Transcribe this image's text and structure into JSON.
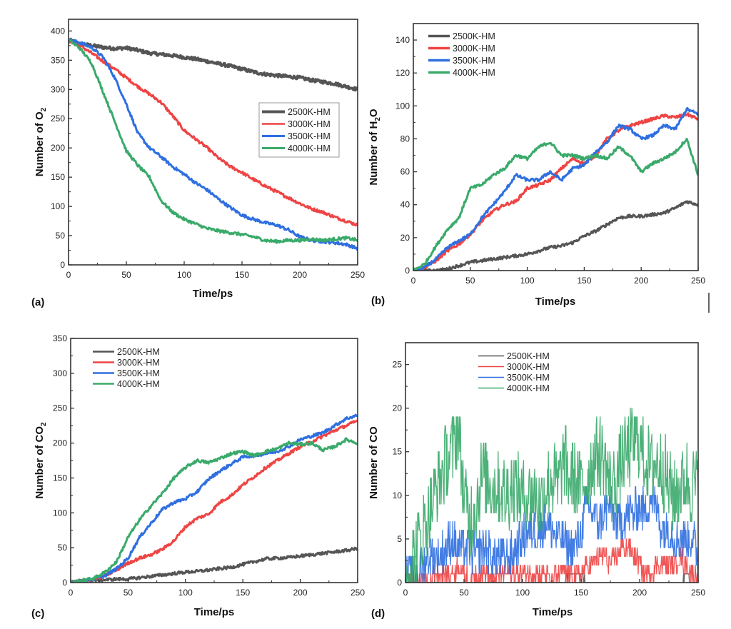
{
  "figure": {
    "series_names": [
      "2500K-HM",
      "3000K-HM",
      "3500K-HM",
      "4000K-HM"
    ],
    "series_colors": [
      "#555555",
      "#ee4444",
      "#2f6fe0",
      "#3aaa6a"
    ]
  },
  "chart_data": [
    {
      "id": "a",
      "type": "line",
      "panel_label": "(a)",
      "title": "",
      "xlabel": "Time/ps",
      "ylabel": "Number of O",
      "ylabel_sub": "2",
      "xlim": [
        0,
        250
      ],
      "ylim": [
        0,
        420
      ],
      "xticks": [
        0,
        50,
        100,
        150,
        200,
        250
      ],
      "yticks": [
        0,
        50,
        100,
        150,
        200,
        250,
        300,
        350,
        400
      ],
      "grid": false,
      "legend": {
        "placement": "right-middle",
        "boxed": true
      },
      "x": [
        0,
        10,
        20,
        30,
        40,
        50,
        60,
        70,
        80,
        90,
        100,
        110,
        120,
        130,
        140,
        150,
        160,
        170,
        180,
        190,
        200,
        210,
        220,
        230,
        240,
        250
      ],
      "series": [
        {
          "name": "2500K-HM",
          "values": [
            385,
            378,
            375,
            372,
            370,
            371,
            367,
            362,
            360,
            358,
            355,
            352,
            348,
            344,
            340,
            335,
            330,
            326,
            324,
            322,
            320,
            316,
            313,
            310,
            305,
            300
          ]
        },
        {
          "name": "3000K-HM",
          "values": [
            383,
            375,
            362,
            348,
            335,
            320,
            305,
            292,
            278,
            255,
            230,
            215,
            200,
            182,
            168,
            158,
            146,
            135,
            125,
            115,
            105,
            96,
            90,
            82,
            75,
            68
          ]
        },
        {
          "name": "3500K-HM",
          "values": [
            385,
            380,
            372,
            355,
            320,
            275,
            225,
            200,
            185,
            168,
            155,
            140,
            128,
            112,
            98,
            85,
            78,
            72,
            68,
            60,
            48,
            42,
            40,
            38,
            35,
            28
          ]
        },
        {
          "name": "4000K-HM",
          "values": [
            385,
            370,
            345,
            295,
            245,
            195,
            170,
            150,
            110,
            90,
            78,
            70,
            62,
            58,
            55,
            52,
            48,
            42,
            40,
            42,
            42,
            44,
            42,
            44,
            46,
            42
          ]
        }
      ]
    },
    {
      "id": "b",
      "type": "line",
      "panel_label": "(b)",
      "title": "",
      "xlabel": "Time/ps",
      "ylabel": "Number of H",
      "ylabel_sub": "2",
      "ylabel_after": "O",
      "xlim": [
        0,
        250
      ],
      "ylim": [
        0,
        150
      ],
      "xticks": [
        0,
        50,
        100,
        150,
        200,
        250
      ],
      "yticks": [
        0,
        20,
        40,
        60,
        80,
        100,
        120,
        140
      ],
      "grid": false,
      "legend": {
        "placement": "top-left",
        "boxed": false
      },
      "x": [
        0,
        10,
        20,
        30,
        40,
        50,
        60,
        70,
        80,
        90,
        100,
        110,
        120,
        130,
        140,
        150,
        160,
        170,
        180,
        190,
        200,
        210,
        220,
        230,
        240,
        250
      ],
      "series": [
        {
          "name": "2500K-HM",
          "values": [
            0,
            0,
            0,
            1,
            3,
            5,
            6,
            7,
            8,
            9,
            10,
            12,
            14,
            15,
            17,
            21,
            24,
            28,
            32,
            33,
            33,
            34,
            35,
            38,
            42,
            40
          ]
        },
        {
          "name": "3000K-HM",
          "values": [
            0,
            2,
            6,
            12,
            16,
            22,
            30,
            36,
            40,
            42,
            50,
            52,
            55,
            62,
            68,
            65,
            70,
            80,
            85,
            88,
            90,
            92,
            94,
            93,
            95,
            92
          ]
        },
        {
          "name": "3500K-HM",
          "values": [
            0,
            2,
            7,
            14,
            18,
            22,
            32,
            40,
            48,
            58,
            55,
            55,
            60,
            55,
            62,
            64,
            72,
            78,
            88,
            86,
            80,
            82,
            88,
            86,
            98,
            95
          ]
        },
        {
          "name": "4000K-HM",
          "values": [
            0,
            4,
            15,
            25,
            32,
            50,
            52,
            58,
            62,
            70,
            68,
            75,
            78,
            70,
            70,
            68,
            70,
            68,
            75,
            70,
            60,
            65,
            68,
            72,
            80,
            58
          ]
        }
      ]
    },
    {
      "id": "c",
      "type": "line",
      "panel_label": "(c)",
      "title": "",
      "xlabel": "Time/ps",
      "ylabel": "Number of CO",
      "ylabel_sub": "2",
      "xlim": [
        0,
        250
      ],
      "ylim": [
        0,
        350
      ],
      "xticks": [
        0,
        50,
        100,
        150,
        200,
        250
      ],
      "yticks": [
        0,
        50,
        100,
        150,
        200,
        250,
        300,
        350
      ],
      "grid": false,
      "legend": {
        "placement": "top-left",
        "boxed": false
      },
      "x": [
        0,
        10,
        20,
        30,
        40,
        50,
        60,
        70,
        80,
        90,
        100,
        110,
        120,
        130,
        140,
        150,
        160,
        170,
        180,
        190,
        200,
        210,
        220,
        230,
        240,
        250
      ],
      "series": [
        {
          "name": "2500K-HM",
          "values": [
            0,
            2,
            3,
            4,
            5,
            5,
            7,
            9,
            11,
            13,
            15,
            16,
            18,
            20,
            22,
            26,
            30,
            34,
            35,
            36,
            38,
            40,
            42,
            44,
            46,
            49
          ]
        },
        {
          "name": "3000K-HM",
          "values": [
            0,
            3,
            5,
            10,
            18,
            28,
            35,
            40,
            48,
            60,
            80,
            92,
            98,
            115,
            125,
            140,
            152,
            165,
            175,
            185,
            195,
            202,
            210,
            218,
            225,
            232
          ]
        },
        {
          "name": "3500K-HM",
          "values": [
            0,
            3,
            5,
            10,
            20,
            35,
            65,
            85,
            105,
            115,
            120,
            130,
            148,
            160,
            170,
            180,
            182,
            185,
            188,
            195,
            205,
            210,
            215,
            225,
            235,
            240
          ]
        },
        {
          "name": "4000K-HM",
          "values": [
            0,
            3,
            6,
            15,
            30,
            65,
            90,
            110,
            128,
            150,
            165,
            175,
            172,
            178,
            185,
            188,
            182,
            188,
            192,
            200,
            198,
            200,
            190,
            195,
            205,
            200
          ]
        }
      ]
    },
    {
      "id": "d",
      "type": "line",
      "panel_label": "(d)",
      "title": "",
      "xlabel": "Time/ps",
      "ylabel": "Number of CO",
      "ylabel_sub": "",
      "xlim": [
        0,
        250
      ],
      "ylim": [
        0,
        27.5
      ],
      "xticks": [
        0,
        50,
        100,
        150,
        200,
        250
      ],
      "yticks": [
        0,
        5,
        10,
        15,
        20,
        25
      ],
      "grid": false,
      "legend": {
        "placement": "top-center",
        "boxed": false
      },
      "x": [
        0,
        5,
        10,
        15,
        20,
        25,
        30,
        35,
        40,
        45,
        50,
        55,
        60,
        65,
        70,
        75,
        80,
        85,
        90,
        95,
        100,
        105,
        110,
        115,
        120,
        125,
        130,
        135,
        140,
        145,
        150,
        155,
        160,
        165,
        170,
        175,
        180,
        185,
        190,
        195,
        200,
        205,
        210,
        215,
        220,
        225,
        230,
        235,
        240,
        245,
        250
      ],
      "series": [
        {
          "name": "2500K-HM",
          "values": [
            0,
            0,
            0,
            0,
            0,
            0,
            0,
            0,
            0,
            0,
            0,
            0,
            0,
            0,
            0,
            0,
            0,
            0,
            0,
            0,
            0,
            0,
            0,
            0,
            0,
            0,
            0,
            0,
            1,
            1,
            1,
            0,
            0,
            0,
            0,
            0,
            0,
            0,
            0,
            0,
            0,
            0,
            0,
            0,
            0,
            0,
            0,
            0,
            1,
            0,
            0
          ]
        },
        {
          "name": "3000K-HM",
          "values": [
            0,
            0,
            0,
            0,
            0,
            1,
            1,
            1,
            1,
            2,
            1,
            0,
            1,
            1,
            1,
            0,
            1,
            1,
            1,
            1,
            1,
            1,
            1,
            1,
            1,
            0,
            1,
            1,
            1,
            1,
            1,
            2,
            2,
            3,
            3,
            2,
            3,
            4,
            4,
            3,
            2,
            1,
            1,
            2,
            2,
            2,
            2,
            3,
            2,
            1,
            1
          ]
        },
        {
          "name": "3500K-HM",
          "values": [
            0,
            1,
            1,
            2,
            3,
            3,
            3,
            4,
            5,
            4,
            4,
            4,
            3,
            4,
            4,
            3,
            3,
            3,
            3,
            4,
            5,
            6,
            6,
            6,
            7,
            6,
            5,
            5,
            4,
            4,
            6,
            9,
            8,
            7,
            8,
            9,
            7,
            7,
            8,
            8,
            9,
            8,
            10,
            8,
            6,
            6,
            5,
            5,
            5,
            5,
            3
          ]
        },
        {
          "name": "4000K-HM",
          "values": [
            0,
            2,
            4,
            6,
            8,
            10,
            12,
            14,
            15,
            18,
            10,
            7,
            9,
            12,
            12,
            11,
            11,
            10,
            11,
            11,
            10,
            10,
            10,
            9,
            11,
            12,
            11,
            14,
            12,
            12,
            11,
            12,
            14,
            15,
            14,
            11,
            12,
            14,
            15,
            16,
            16,
            14,
            13,
            14,
            13,
            11,
            10,
            11,
            12,
            11,
            11
          ]
        }
      ]
    }
  ]
}
